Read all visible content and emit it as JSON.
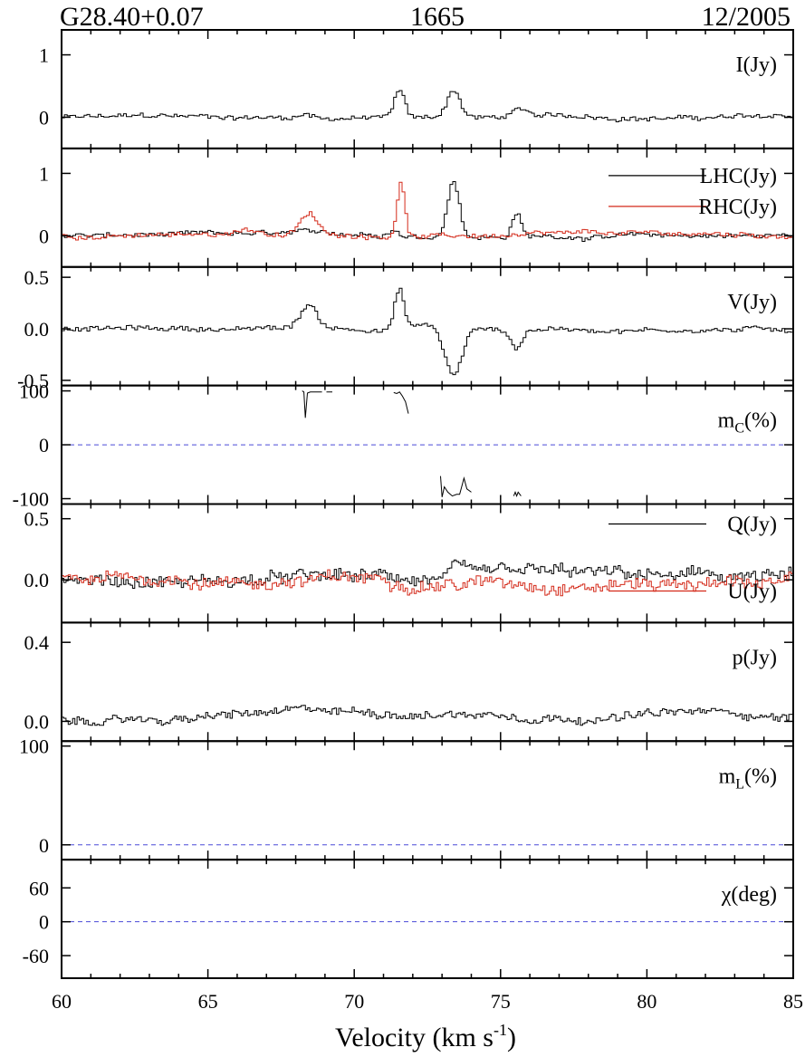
{
  "header": {
    "source": "G28.40+0.07",
    "frequency": "1665",
    "epoch": "12/2005"
  },
  "chart_data": {
    "type": "line",
    "xlabel": "Velocity (km s",
    "xlabel_sup": "-1",
    "xlabel_close": ")",
    "xlim": [
      60,
      85
    ],
    "xticks": [
      60,
      65,
      70,
      75,
      80,
      85
    ],
    "panels": [
      {
        "label": "I(Jy)",
        "ylim": [
          -0.5,
          1.4
        ],
        "yticks": [
          {
            "v": 0,
            "t": "0"
          },
          {
            "v": 1,
            "t": "1"
          }
        ],
        "series": [
          {
            "color": "#000000",
            "features": [
              [
                71.5,
                0.42,
                0.18
              ],
              [
                73.35,
                0.45,
                0.22
              ],
              [
                75.6,
                0.12,
                0.25
              ],
              [
                68.3,
                0.05,
                0.3
              ]
            ]
          }
        ]
      },
      {
        "label": "",
        "ylim": [
          -0.5,
          1.4
        ],
        "yticks": [
          {
            "v": 0,
            "t": "0"
          },
          {
            "v": 1,
            "t": "1"
          }
        ],
        "series": [
          {
            "name": "LHC(Jy)",
            "color": "#000000",
            "features": [
              [
                73.35,
                0.92,
                0.2
              ],
              [
                75.5,
                0.38,
                0.15
              ],
              [
                71.3,
                0.1,
                0.2
              ]
            ]
          },
          {
            "name": "RHC(Jy)",
            "color": "#d42a1a",
            "features": [
              [
                71.55,
                0.85,
                0.14
              ],
              [
                68.4,
                0.35,
                0.28
              ],
              [
                66.3,
                0.1,
                0.5
              ]
            ]
          }
        ]
      },
      {
        "label": "V(Jy)",
        "ylim": [
          -0.55,
          0.6
        ],
        "yticks": [
          {
            "v": 0.5,
            "t": "0.5"
          },
          {
            "v": 0,
            "t": "0.0"
          },
          {
            "v": -0.5,
            "t": "-0.5"
          }
        ],
        "series": [
          {
            "color": "#000000",
            "features": [
              [
                71.5,
                0.4,
                0.16
              ],
              [
                68.4,
                0.22,
                0.28
              ],
              [
                73.35,
                -0.45,
                0.28
              ],
              [
                75.5,
                -0.18,
                0.2
              ],
              [
                72.4,
                0.05,
                0.3
              ]
            ]
          }
        ]
      },
      {
        "label": "m",
        "label_sub": "C",
        "label_tail": "(%)",
        "ylim": [
          -110,
          110
        ],
        "yticks": [
          {
            "v": 100,
            "t": "100"
          },
          {
            "v": 0,
            "t": "0"
          },
          {
            "v": -100,
            "t": "-100"
          }
        ],
        "dashed_zero": true,
        "segments": [
          {
            "color": "#000000",
            "points": [
              [
                68.22,
                100
              ],
              [
                68.28,
                98
              ],
              [
                68.33,
                50
              ],
              [
                68.4,
                96
              ],
              [
                68.5,
                98
              ],
              [
                68.9,
                98
              ]
            ]
          },
          {
            "color": "#000000",
            "points": [
              [
                69.05,
                98
              ],
              [
                69.25,
                98
              ]
            ]
          },
          {
            "color": "#000000",
            "points": [
              [
                71.35,
                97
              ],
              [
                71.45,
                95
              ],
              [
                71.55,
                98
              ],
              [
                71.65,
                90
              ],
              [
                71.75,
                80
              ],
              [
                71.85,
                58
              ]
            ]
          },
          {
            "color": "#000000",
            "points": [
              [
                72.95,
                -58
              ],
              [
                73.0,
                -97
              ],
              [
                73.08,
                -78
              ],
              [
                73.2,
                -88
              ],
              [
                73.35,
                -95
              ],
              [
                73.5,
                -92
              ],
              [
                73.6,
                -92
              ],
              [
                73.75,
                -62
              ],
              [
                73.85,
                -82
              ],
              [
                74.0,
                -88
              ]
            ]
          },
          {
            "color": "#000000",
            "points": [
              [
                75.45,
                -95
              ],
              [
                75.5,
                -88
              ],
              [
                75.55,
                -95
              ],
              [
                75.6,
                -88
              ],
              [
                75.7,
                -95
              ]
            ]
          }
        ]
      },
      {
        "label": "",
        "ylim": [
          -0.35,
          0.62
        ],
        "yticks": [
          {
            "v": 0.5,
            "t": "0.5"
          },
          {
            "v": 0,
            "t": "0.0"
          }
        ],
        "series": [
          {
            "name": "Q(Jy)",
            "color": "#000000",
            "features": [
              [
                73.35,
                0.07,
                0.35
              ]
            ]
          },
          {
            "name": "U(Jy)",
            "color": "#d42a1a",
            "features": []
          }
        ]
      },
      {
        "label": "p(Jy)",
        "ylim": [
          -0.1,
          0.5
        ],
        "yticks": [
          {
            "v": 0.4,
            "t": "0.4"
          },
          {
            "v": 0,
            "t": "0.0"
          }
        ],
        "series": [
          {
            "color": "#000000",
            "features": [
              [
                67.5,
                0.03,
                3.0
              ],
              [
                74.0,
                0.04,
                3.5
              ],
              [
                82.0,
                0.04,
                3.0
              ]
            ]
          }
        ]
      },
      {
        "label": "m",
        "label_sub": "L",
        "label_tail": "(%)",
        "ylim": [
          -15,
          105
        ],
        "yticks": [
          {
            "v": 100,
            "t": "100"
          },
          {
            "v": 0,
            "t": "0"
          }
        ],
        "dashed_zero": true,
        "series": []
      },
      {
        "label": "χ(deg)",
        "ylim": [
          -100,
          110
        ],
        "yticks": [
          {
            "v": 60,
            "t": "60"
          },
          {
            "v": 0,
            "t": "0"
          },
          {
            "v": -60,
            "t": "-60"
          }
        ],
        "dashed_zero": true,
        "series": []
      }
    ]
  }
}
